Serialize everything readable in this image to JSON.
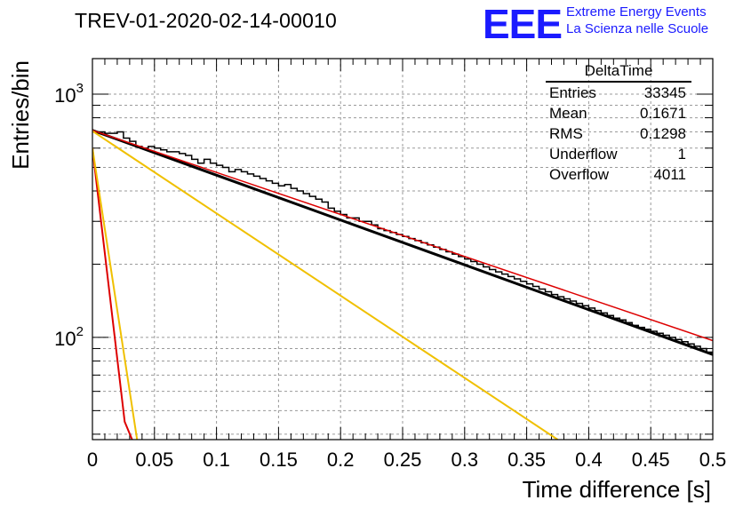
{
  "title": "TREV-01-2020-02-14-00010",
  "logo": {
    "mark": "EEE",
    "line1": "Extreme Energy Events",
    "line2": "La Scienza nelle Scuole",
    "color": "#1a1aff"
  },
  "stats_box": {
    "title": "DeltaTime",
    "rows": [
      {
        "label": "Entries",
        "value": "33345"
      },
      {
        "label": "Mean",
        "value": "0.1671"
      },
      {
        "label": "RMS",
        "value": "0.1298"
      },
      {
        "label": "Underflow",
        "value": "1"
      },
      {
        "label": "Overflow",
        "value": "4011"
      }
    ]
  },
  "chart_data": {
    "type": "line",
    "title": "TREV-01-2020-02-14-00010",
    "xlabel": "Time difference [s]",
    "ylabel": "Entries/bin",
    "xlim": [
      0,
      0.5
    ],
    "ylim": [
      38,
      1400
    ],
    "y_scale": "log",
    "grid": true,
    "x_ticks": [
      "0",
      "0.05",
      "0.1",
      "0.15",
      "0.2",
      "0.25",
      "0.3",
      "0.35",
      "0.4",
      "0.45",
      "0.5"
    ],
    "y_tick_labels": [
      {
        "value": 100,
        "base": "10",
        "exp": "2"
      },
      {
        "value": 1000,
        "base": "10",
        "exp": "3"
      }
    ],
    "histogram": {
      "name": "DeltaTime",
      "color": "#000000",
      "bin_width": 0.005,
      "counts": [
        700,
        700,
        690,
        690,
        700,
        660,
        640,
        610,
        600,
        610,
        600,
        590,
        580,
        580,
        570,
        560,
        540,
        520,
        540,
        520,
        510,
        500,
        480,
        490,
        480,
        470,
        460,
        450,
        440,
        430,
        420,
        425,
        410,
        400,
        390,
        380,
        370,
        360,
        340,
        330,
        320,
        310,
        310,
        300,
        300,
        290,
        280,
        275,
        270,
        265,
        260,
        255,
        250,
        245,
        240,
        235,
        230,
        225,
        220,
        215,
        210,
        205,
        200,
        195,
        190,
        186,
        182,
        178,
        174,
        170,
        166,
        162,
        158,
        154,
        150,
        147,
        144,
        141,
        138,
        135,
        132,
        129,
        126,
        123,
        120,
        118,
        115,
        112,
        110,
        108,
        106,
        104,
        102,
        100,
        98,
        96,
        94,
        92,
        90,
        87
      ]
    },
    "curves": [
      {
        "name": "fit_total",
        "color": "#000000",
        "width": 3,
        "x": [
          0,
          0.5
        ],
        "y": [
          710,
          85
        ]
      },
      {
        "name": "fit_slow",
        "color": "#dd0000",
        "width": 1.5,
        "x": [
          0,
          0.5
        ],
        "y": [
          710,
          97
        ]
      },
      {
        "name": "fit_slow_alt",
        "color": "#f0c000",
        "width": 2,
        "x": [
          0,
          0.375
        ],
        "y": [
          705,
          38
        ]
      },
      {
        "name": "fit_fast",
        "color": "#dd0000",
        "width": 2,
        "x": [
          0,
          0.026,
          0.032
        ],
        "y": [
          600,
          45,
          38
        ]
      },
      {
        "name": "fit_fast_alt",
        "color": "#f0c000",
        "width": 2,
        "x": [
          0,
          0.036
        ],
        "y": [
          600,
          38
        ]
      }
    ]
  }
}
